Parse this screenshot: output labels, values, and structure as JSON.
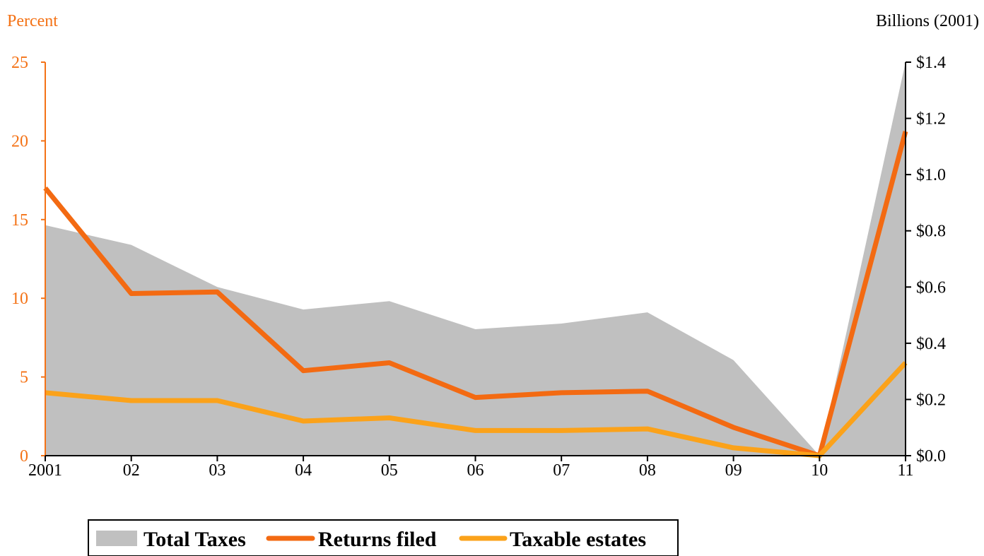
{
  "chart_data": {
    "type": "area",
    "left_axis": {
      "label": "Percent",
      "ylim": [
        0,
        25
      ],
      "ticks": [
        "0",
        "5",
        "10",
        "15",
        "20",
        "25"
      ]
    },
    "right_axis": {
      "label": "Billions (2001)",
      "ylim": [
        0,
        1.4
      ],
      "ticks": [
        "$0.0",
        "$0.2",
        "$0.4",
        "$0.6",
        "$0.8",
        "$1.0",
        "$1.2",
        "$1.4"
      ]
    },
    "categories": [
      "2001",
      "02",
      "03",
      "04",
      "05",
      "06",
      "07",
      "08",
      "09",
      "10",
      "11"
    ],
    "series": [
      {
        "name": "Total Taxes",
        "kind": "area",
        "axis": "right",
        "color": "#C0C0C0",
        "values": [
          0.82,
          0.75,
          0.6,
          0.52,
          0.55,
          0.45,
          0.47,
          0.51,
          0.34,
          0.0,
          1.4
        ]
      },
      {
        "name": "Returns filed",
        "kind": "line",
        "axis": "left",
        "color": "#F36A12",
        "values": [
          17.0,
          10.3,
          10.4,
          5.4,
          5.9,
          3.7,
          4.0,
          4.1,
          1.8,
          0.0,
          20.6
        ]
      },
      {
        "name": "Taxable estates",
        "kind": "line",
        "axis": "left",
        "color": "#FBA21A",
        "values": [
          4.0,
          3.5,
          3.5,
          2.2,
          2.4,
          1.6,
          1.6,
          1.7,
          0.5,
          0.0,
          5.9
        ]
      }
    ],
    "grid": false,
    "legend_position": "bottom-left"
  },
  "colors": {
    "left_axis": "#F47216",
    "right_axis": "#000000"
  }
}
